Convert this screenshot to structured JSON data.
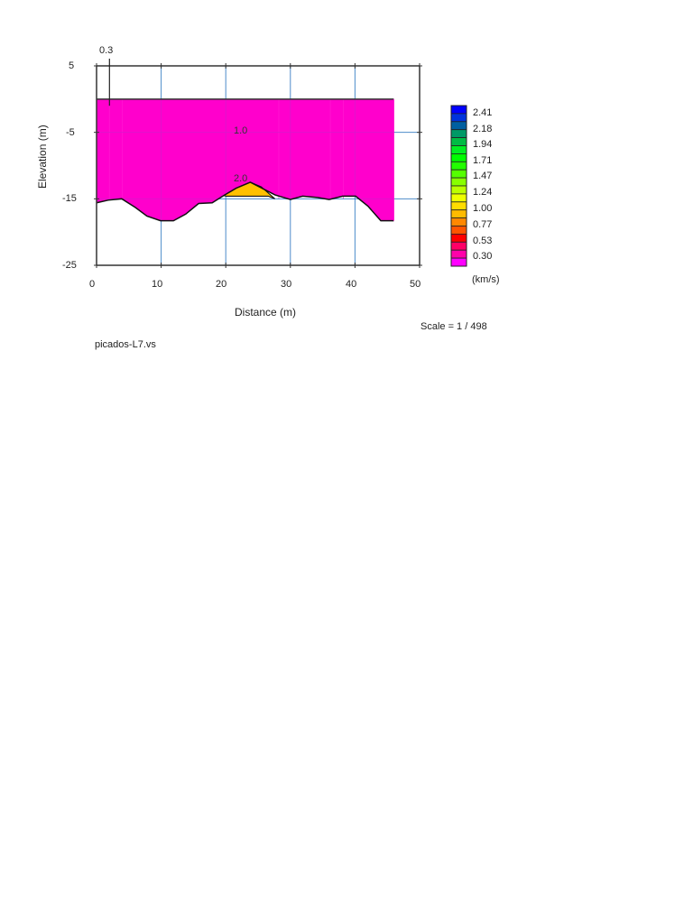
{
  "chart_data": {
    "type": "heatmap",
    "subtype": "seismic refraction velocity section",
    "title": "",
    "xlabel": "Distance (m)",
    "ylabel": "Elevation (m)",
    "xlim": [
      0,
      50
    ],
    "ylim": [
      -25,
      5
    ],
    "x_ticks": [
      0,
      10,
      20,
      30,
      40,
      50
    ],
    "y_ticks": [
      5,
      -5,
      -15,
      -25
    ],
    "grid": true,
    "top_marker": {
      "label": "0.3",
      "x": 2
    },
    "contour_labels": [
      {
        "text": "1.0",
        "x": 22.5,
        "y": -5
      },
      {
        "text": "2.0",
        "x": 22.5,
        "y": -12.5
      }
    ],
    "surface_elevation": 0,
    "model_x_range": [
      0,
      46
    ],
    "bottom_profile": [
      [
        0,
        -15.6
      ],
      [
        1.8,
        -15.2
      ],
      [
        3.9,
        -15.0
      ],
      [
        6.0,
        -16.3
      ],
      [
        7.8,
        -17.6
      ],
      [
        9.9,
        -18.3
      ],
      [
        11.9,
        -18.3
      ],
      [
        13.8,
        -17.3
      ],
      [
        15.8,
        -15.7
      ],
      [
        17.9,
        -15.6
      ],
      [
        19.7,
        -14.5
      ],
      [
        21.6,
        -13.4
      ],
      [
        23.8,
        -12.5
      ],
      [
        27.6,
        -14.4
      ],
      [
        30.0,
        -15.1
      ],
      [
        31.9,
        -14.6
      ],
      [
        34.2,
        -14.8
      ],
      [
        36.0,
        -15.1
      ],
      [
        38.1,
        -14.6
      ],
      [
        40.1,
        -14.6
      ],
      [
        42.0,
        -16.1
      ],
      [
        44.0,
        -18.3
      ],
      [
        46.0,
        -18.3
      ]
    ],
    "layers": [
      {
        "name": "low velocity layer",
        "velocity_kms": 0.3,
        "color": "#ff00cc"
      },
      {
        "name": "refractor bump",
        "velocity_kms": 1.0,
        "color": "#ffc000",
        "polygon": [
          [
            19.7,
            -14.5
          ],
          [
            21.6,
            -13.4
          ],
          [
            23.8,
            -12.5
          ],
          [
            25.5,
            -13.2
          ],
          [
            27.6,
            -15.0
          ],
          [
            26.6,
            -14.6
          ],
          [
            20.0,
            -14.6
          ]
        ]
      }
    ],
    "legend": {
      "position": "right",
      "unit": "(km/s)",
      "labels": [
        "2.41",
        "2.18",
        "1.94",
        "1.71",
        "1.47",
        "1.24",
        "1.00",
        "0.77",
        "0.53",
        "0.30"
      ],
      "colors": [
        "#0000ff",
        "#0033dd",
        "#005fa0",
        "#009966",
        "#00bb44",
        "#00ee22",
        "#00ff00",
        "#22ff00",
        "#55ff00",
        "#88ff00",
        "#bbff00",
        "#eeff00",
        "#ffdd00",
        "#ffbb00",
        "#ff8800",
        "#ff5500",
        "#ff0000",
        "#ff0066",
        "#ff00aa",
        "#ff00ff"
      ]
    },
    "annotations": [
      "Scale = 1 / 498",
      "picados-L7.vs"
    ]
  },
  "labels": {
    "top_marker": "0.3",
    "contour_1": "1.0",
    "contour_2": "2.0",
    "xlabel": "Distance (m)",
    "ylabel": "Elevation (m)",
    "x_ticks": [
      "0",
      "10",
      "20",
      "30",
      "40",
      "50"
    ],
    "y_ticks": [
      "5",
      "-5",
      "-15",
      "-25"
    ],
    "legend_labels": [
      "2.41",
      "2.18",
      "1.94",
      "1.71",
      "1.47",
      "1.24",
      "1.00",
      "0.77",
      "0.53",
      "0.30"
    ],
    "legend_unit": "(km/s)",
    "scale": "Scale = 1 / 498",
    "filename": "picados-L7.vs"
  }
}
